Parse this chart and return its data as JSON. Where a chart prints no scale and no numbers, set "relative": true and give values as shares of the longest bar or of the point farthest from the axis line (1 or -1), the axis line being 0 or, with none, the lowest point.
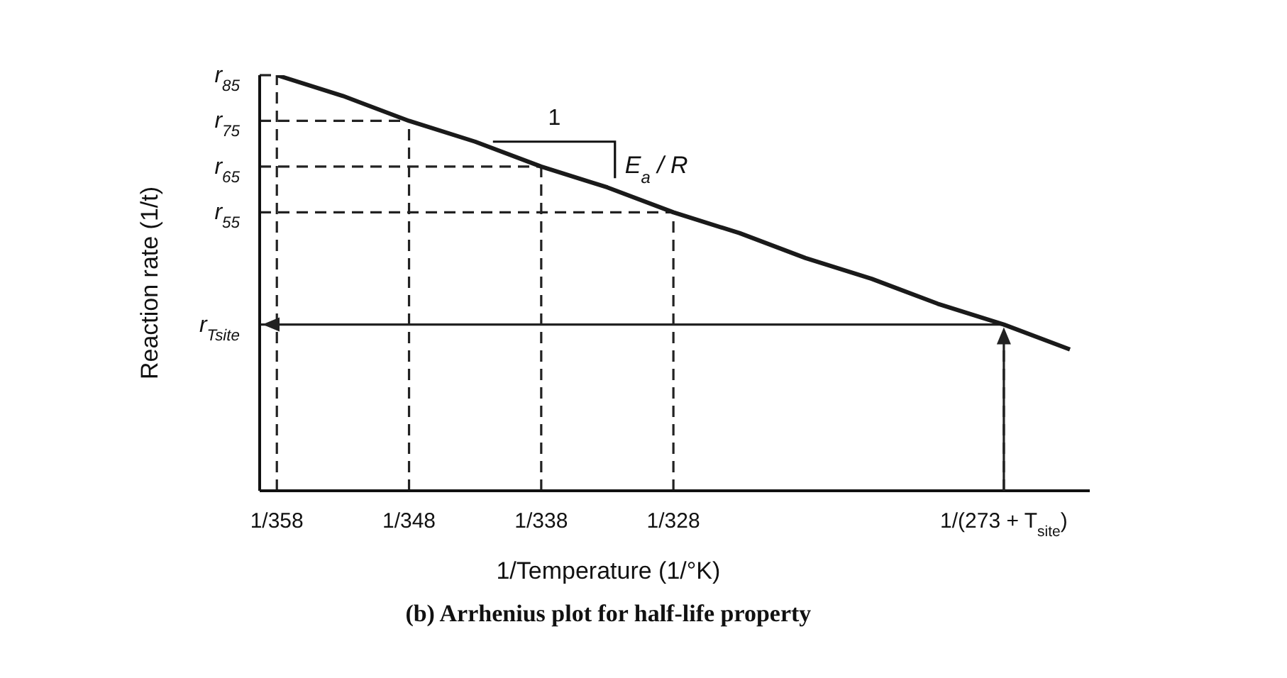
{
  "chart_data": {
    "type": "line",
    "relative": true,
    "title": "(b) Arrhenius plot for half-life property",
    "xlabel": "1/Temperature (1/°K)",
    "ylabel": "Reaction rate (1/t)",
    "annotations": [
      "1",
      "E$_{a}$ / R"
    ],
    "categories": [
      "1/358",
      null,
      "1/348",
      null,
      "1/338",
      null,
      "1/328",
      null,
      null,
      null,
      null,
      "1/(273 + T$_{site}$)",
      null
    ],
    "series": [
      {
        "color": "#1a1a1a",
        "values": [
          1,
          0.95,
          0.89,
          0.84,
          0.78,
          0.73,
          0.67,
          0.62,
          0.56,
          0.51,
          0.45,
          0.4,
          0.34
        ]
      }
    ],
    "ref_lines": [
      {
        "axis": "y",
        "value": 1,
        "label": "r$_{85}$",
        "line_style": "dashed"
      },
      {
        "axis": "y",
        "value": 0.89,
        "label": "r$_{75}$",
        "line_style": "dashed"
      },
      {
        "axis": "y",
        "value": 0.78,
        "label": "r$_{65}$",
        "line_style": "dashed"
      },
      {
        "axis": "y",
        "value": 0.67,
        "label": "r$_{55}$",
        "line_style": "dashed"
      },
      {
        "axis": "y",
        "value": 0.4,
        "label": "r$_{Tsite}$",
        "line_style": "solid"
      }
    ],
    "grid": "x",
    "marker": "none",
    "line_style": "solid"
  }
}
